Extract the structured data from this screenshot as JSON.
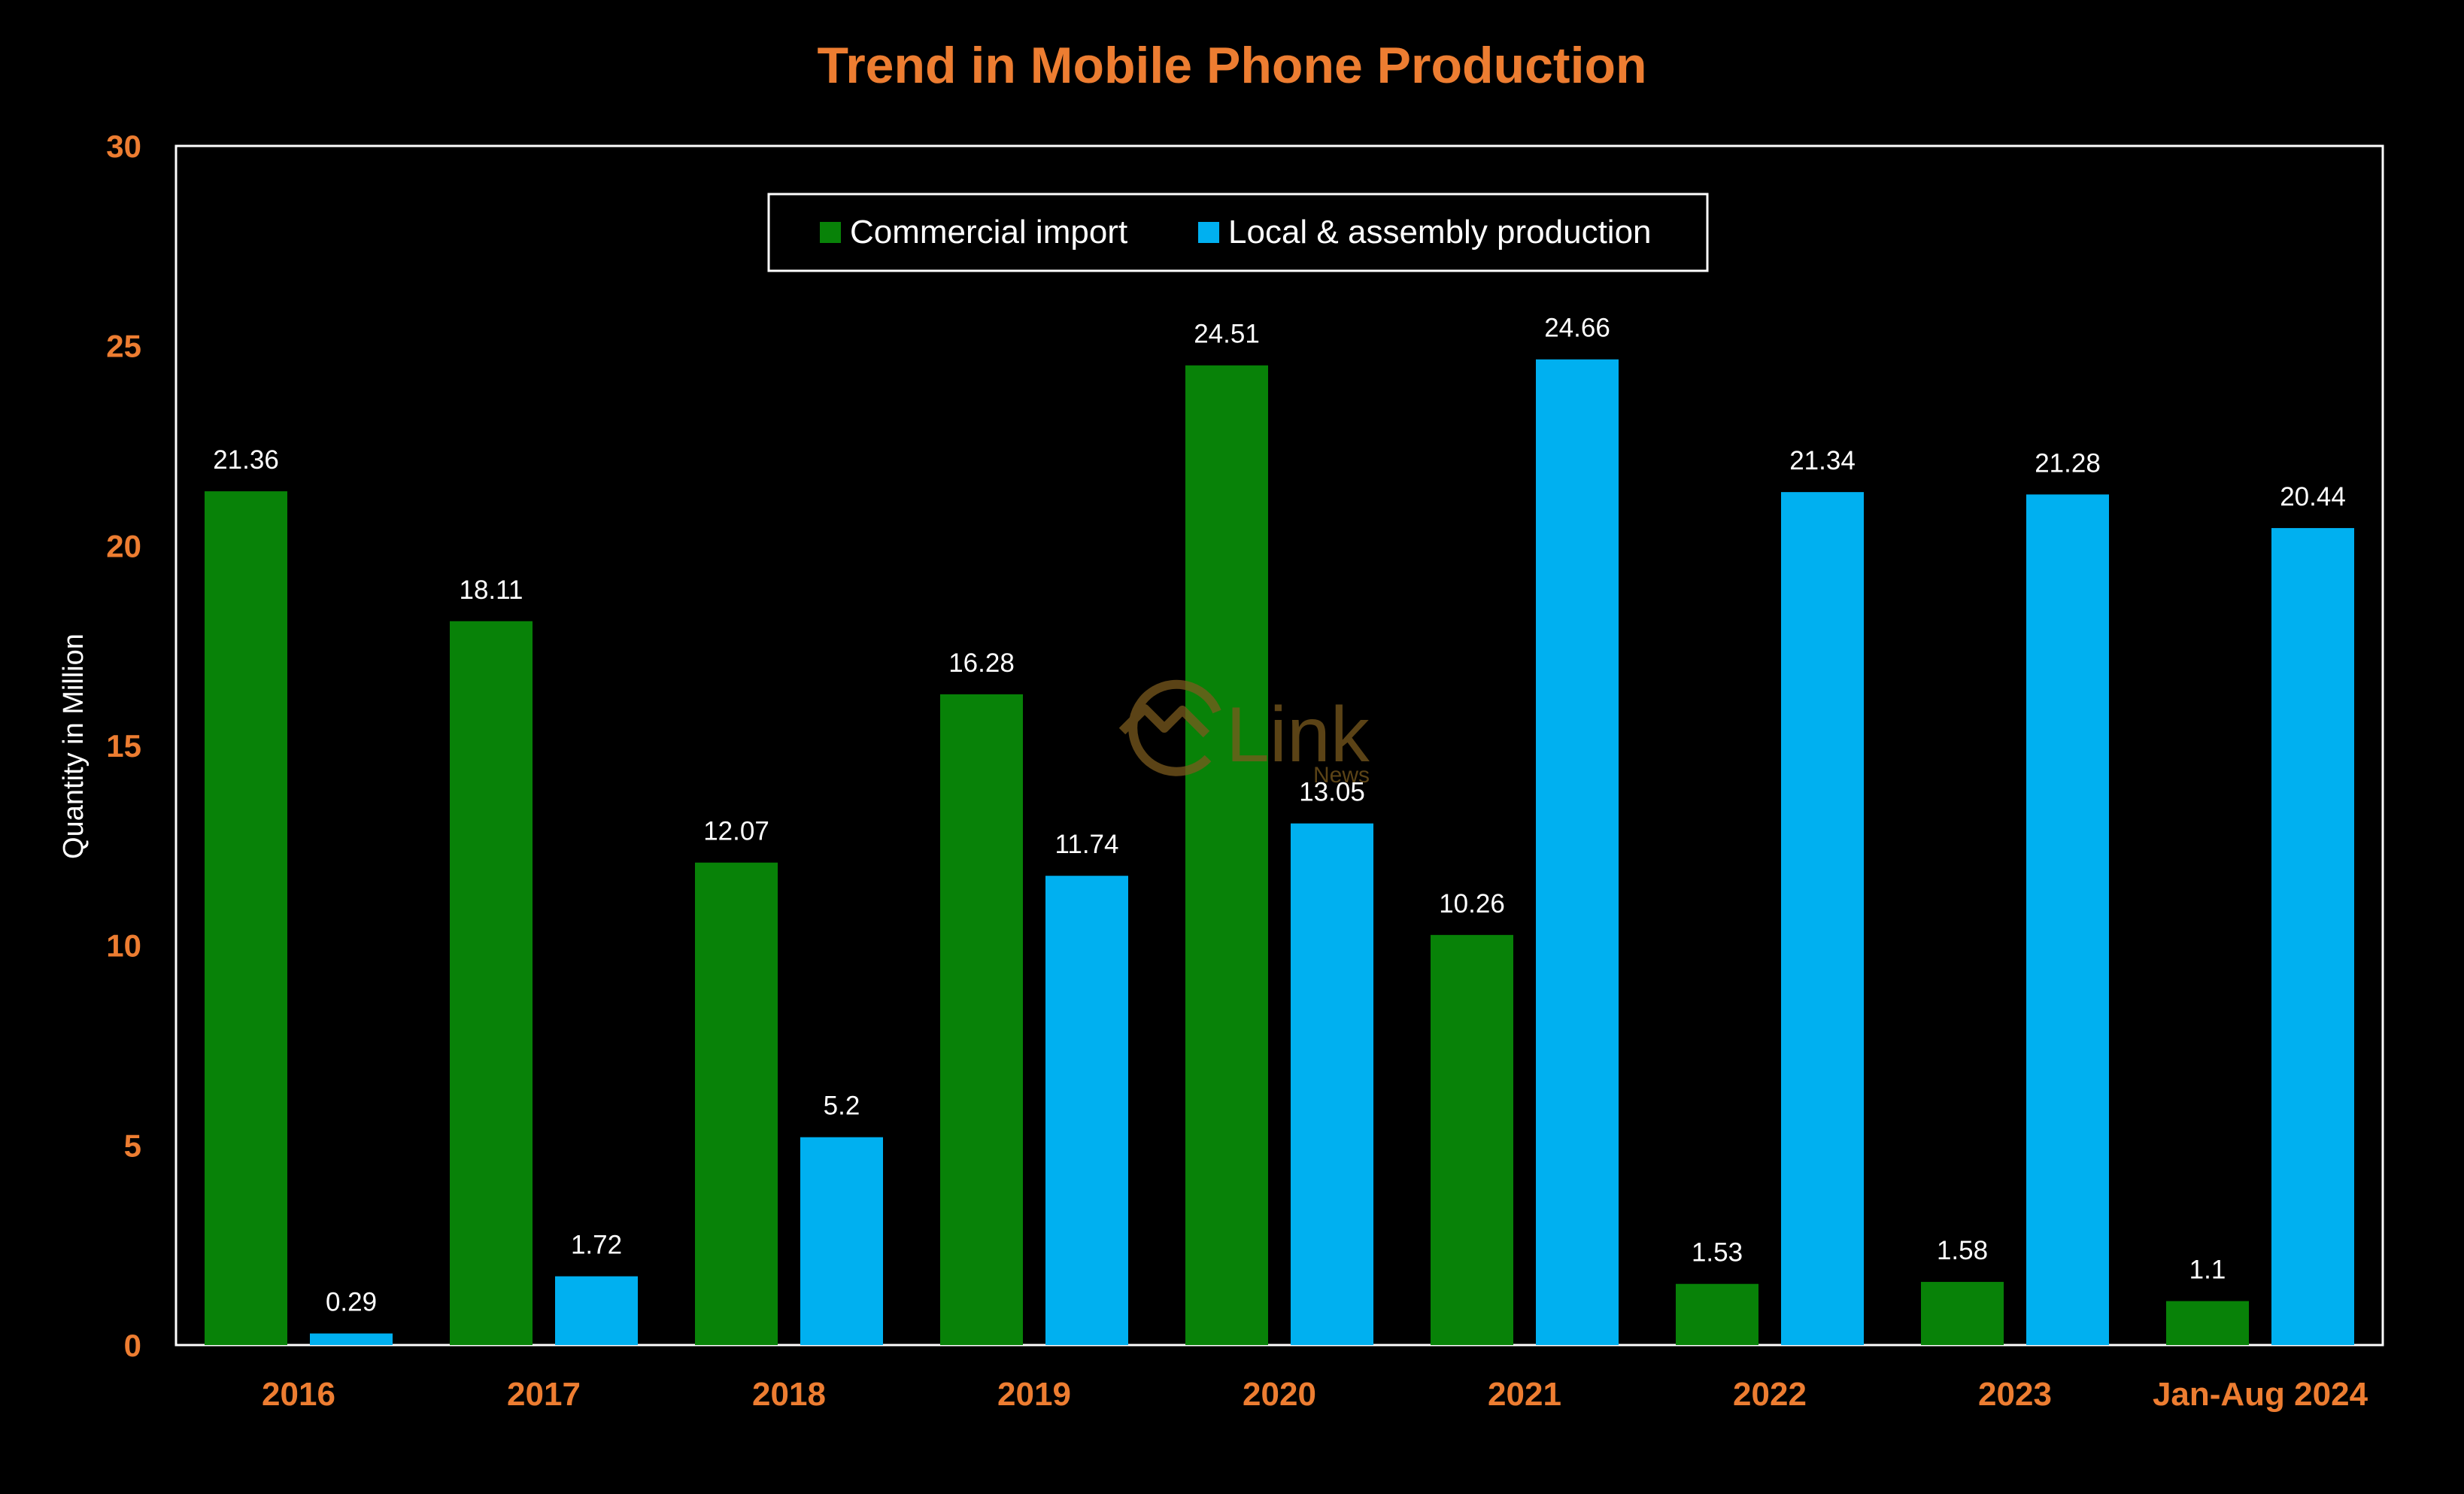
{
  "chart_data": {
    "type": "bar",
    "title": "Trend in Mobile Phone Production",
    "ylabel": "Quantity in Million",
    "xlabel": "",
    "ylim": [
      0,
      30
    ],
    "yticks": [
      0,
      5,
      10,
      15,
      20,
      25,
      30
    ],
    "categories": [
      "2016",
      "2017",
      "2018",
      "2019",
      "2020",
      "2021",
      "2022",
      "2023",
      "Jan-Aug 2024"
    ],
    "series": [
      {
        "name": "Commercial import",
        "color": "#088208",
        "values": [
          21.36,
          18.11,
          12.07,
          16.28,
          24.51,
          10.26,
          1.53,
          1.58,
          1.1
        ],
        "labels": [
          "21.36",
          "18.11",
          "12.07",
          "16.28",
          "24.51",
          "10.26",
          "1.53",
          "1.58",
          "1.1"
        ]
      },
      {
        "name": "Local & assembly production",
        "color": "#00B0F0",
        "values": [
          0.29,
          1.72,
          5.2,
          11.74,
          13.05,
          24.66,
          21.34,
          21.28,
          20.44
        ],
        "labels": [
          "0.29",
          "1.72",
          "5.2",
          "11.74",
          "13.05",
          "24.66",
          "21.34",
          "21.28",
          "20.44"
        ]
      }
    ],
    "legend_position": "top-center",
    "grid": false
  },
  "watermark": {
    "text": "Link",
    "subtext": "News"
  },
  "colors": {
    "accent": "#ED7D31",
    "background": "#000000",
    "text": "#FFFFFF",
    "watermark": "#7A5A1E"
  }
}
